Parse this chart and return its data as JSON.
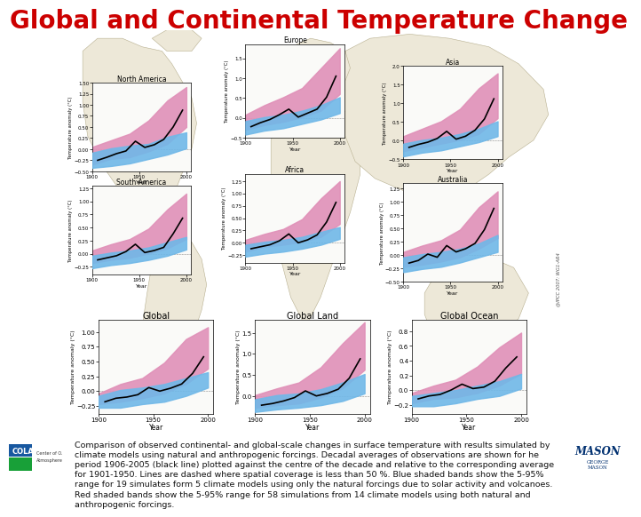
{
  "title": "Global and Continental Temperature Change",
  "title_color": "#CC0000",
  "title_fontsize": 20,
  "title_fontweight": "bold",
  "bg_color": "#FFFFFF",
  "map_bg": "#C8E2EF",
  "caption_text": "Comparison of observed continental- and global-scale changes in surface temperature with results simulated by\nclimate models using natural and anthropogenic forcings. Decadal averages of observations are shown for he\nperiod 1906-2005 (black line) plotted against the centre of the decade and relative to the corresponding average\nfor 1901-1950. Lines are dashed where spatial coverage is less than 50 %. Blue shaded bands show the 5-95%\nrange for 19 simulates form 5 climate models using only the natural forcings due to solar activity and volcanoes.\nRed shaded bands show the 5-95% range for 58 simulations from 14 climate models using both natural and\nanthropogenic forcings.",
  "caption_fontsize": 6.8,
  "bottom_titles": [
    "Global",
    "Global Land",
    "Global Ocean"
  ],
  "pink_color": "#E090B8",
  "blue_color": "#70B8E8",
  "land_color": "#EDE8D8",
  "land_edge": "#B8B090",
  "ipcc_text": "@IPCC 2007: WG1-AR4",
  "ylabel": "Temperature anomaly (°C)"
}
